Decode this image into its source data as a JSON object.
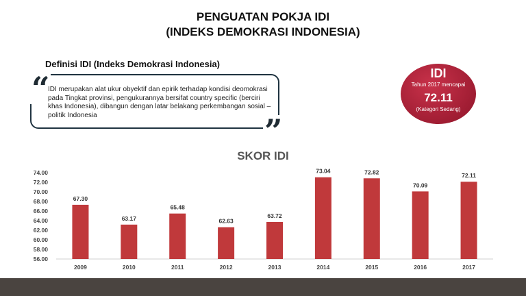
{
  "header": {
    "title_line1": "PENGUATAN POKJA IDI",
    "title_line2": "(INDEKS DEMOKRASI INDONESIA)"
  },
  "definition": {
    "heading": "Definisi IDI (Indeks Demokrasi Indonesia)",
    "text": "IDI merupakan alat ukur obyektif dan epirik terhadap kondisi deomokrasi pada Tingkat provinsi, pengukurannya bersifat country specific (berciri khas Indonesia), dibangun dengan latar belakang perkembangan sosial – politik Indonesia",
    "open_quote": "“",
    "close_quote": "”"
  },
  "badge": {
    "title": "IDI",
    "subtitle": "Tahun 2017 mencapai",
    "value": "72.11",
    "category": "(Kategori Sedang)",
    "color": "#a01d33"
  },
  "chart_data": {
    "type": "bar",
    "title": "SKOR IDI",
    "categories": [
      "2009",
      "2010",
      "2011",
      "2012",
      "2013",
      "2014",
      "2015",
      "2016",
      "2017"
    ],
    "values": [
      67.3,
      63.17,
      65.48,
      62.63,
      63.72,
      73.04,
      72.82,
      70.09,
      72.11
    ],
    "value_labels": [
      "67.30",
      "63.17",
      "65.48",
      "62.63",
      "63.72",
      "73.04",
      "72.82",
      "70.09",
      "72.11"
    ],
    "yticks": [
      "56.00",
      "58.00",
      "60.00",
      "62.00",
      "64.00",
      "66.00",
      "68.00",
      "70.00",
      "72.00",
      "74.00"
    ],
    "ylim": [
      56,
      74
    ],
    "grid": false,
    "bar_color": "#c0393b"
  }
}
